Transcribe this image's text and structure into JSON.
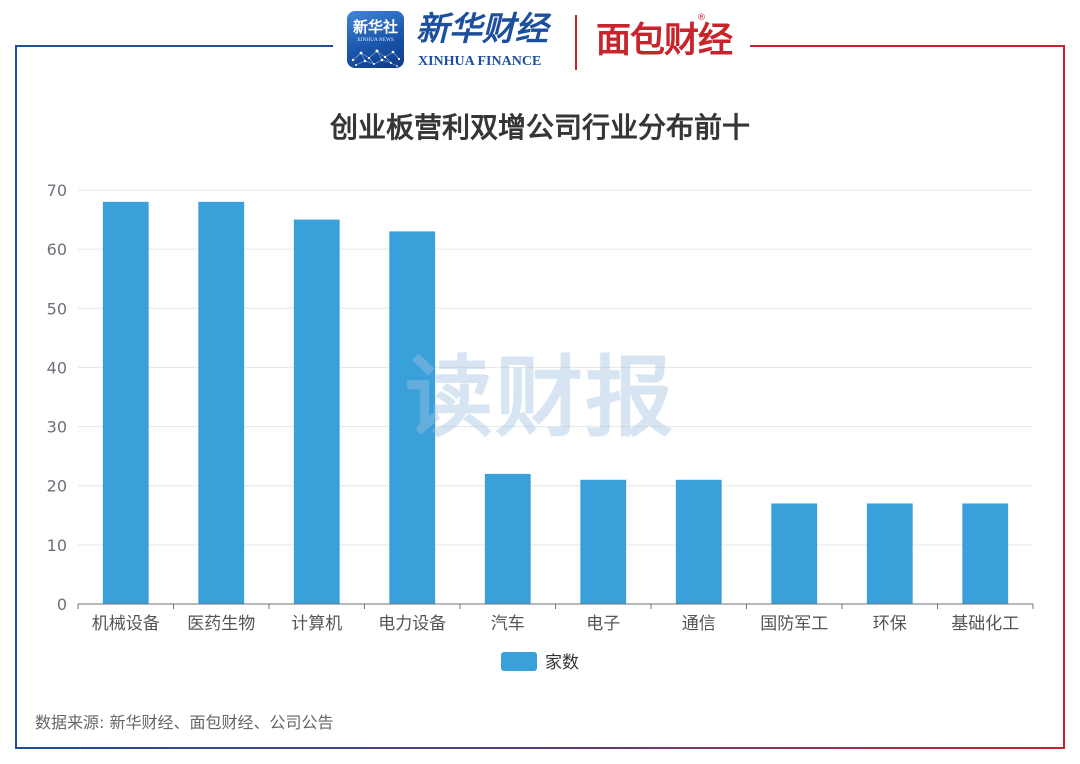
{
  "header": {
    "xinhua_news_logo": {
      "name": "新华社",
      "english": "XINHUA NEWS"
    },
    "xinhua_finance_logo": {
      "name": "新华财经",
      "english": "XINHUA FINANCE"
    },
    "mianbao_logo": {
      "name": "面包财经",
      "registered_mark": "®"
    }
  },
  "watermark": "读财报",
  "source": "数据来源: 新华财经、面包财经、公司公告",
  "colors": {
    "bar": "#3aa0da",
    "xinhua_blue": "#1d4f9c",
    "mianbao_red": "#c8242b",
    "gridline": "#e6e6e6",
    "axis": "#6e7079"
  },
  "chart_data": {
    "type": "bar",
    "title": "创业板营利双增公司行业分布前十",
    "categories": [
      "机械设备",
      "医药生物",
      "计算机",
      "电力设备",
      "汽车",
      "电子",
      "通信",
      "国防军工",
      "环保",
      "基础化工"
    ],
    "series": [
      {
        "name": "家数",
        "values": [
          68,
          68,
          65,
          63,
          22,
          21,
          21,
          17,
          17,
          17
        ]
      }
    ],
    "ylim": [
      0,
      70
    ],
    "yticks": [
      0,
      10,
      20,
      30,
      40,
      50,
      60,
      70
    ],
    "grid": true,
    "legend": "bottom-center"
  }
}
